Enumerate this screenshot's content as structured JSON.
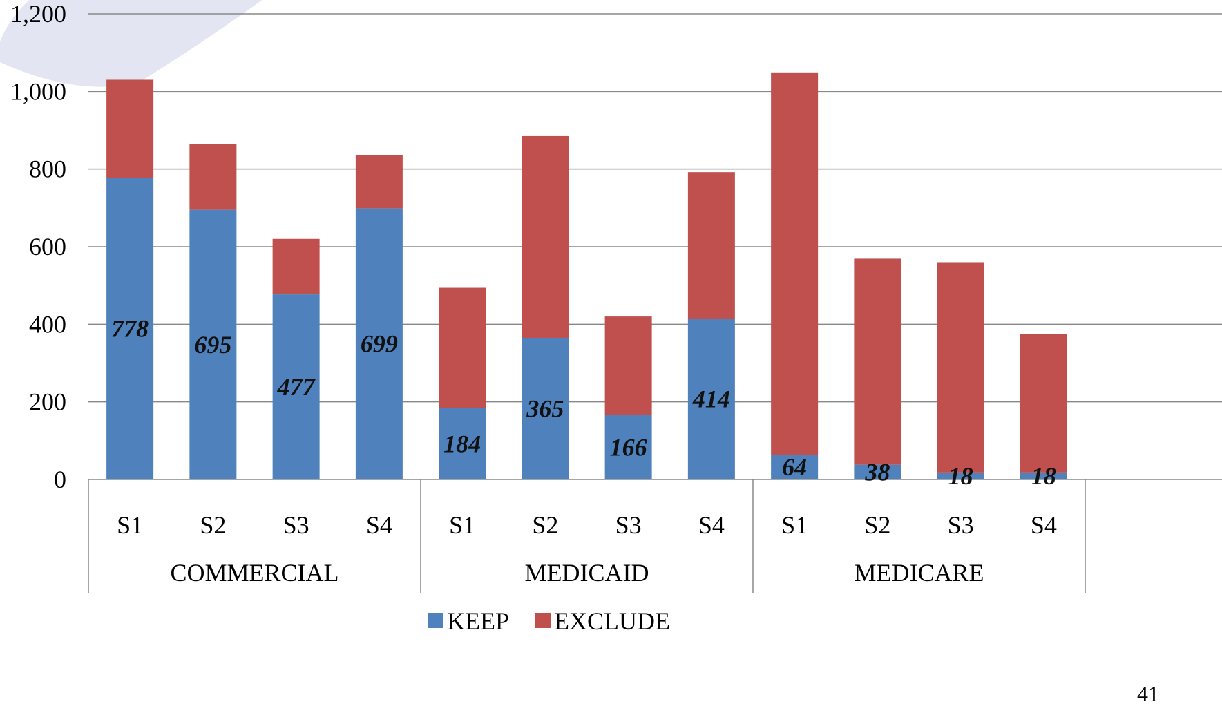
{
  "page_number": "41",
  "chart_data": {
    "type": "bar",
    "stacked": true,
    "groups": [
      "COMMERCIAL",
      "MEDICAID",
      "MEDICARE"
    ],
    "categories": [
      "S1",
      "S2",
      "S3",
      "S4"
    ],
    "series": [
      {
        "name": "KEEP",
        "color": "#4F81BD",
        "values": [
          [
            778,
            695,
            477,
            699
          ],
          [
            184,
            365,
            166,
            414
          ],
          [
            64,
            38,
            18,
            18
          ]
        ]
      },
      {
        "name": "EXCLUDE",
        "color": "#C0504D",
        "values": [
          [
            252,
            170,
            143,
            137
          ],
          [
            310,
            520,
            254,
            378
          ],
          [
            985,
            531,
            542,
            357
          ]
        ]
      }
    ],
    "data_labels": [
      [
        "778",
        "695",
        "477",
        "699"
      ],
      [
        "184",
        "365",
        "166",
        "414"
      ],
      [
        "64",
        "38",
        "18",
        "18"
      ]
    ],
    "y_ticks": [
      "0",
      "200",
      "400",
      "600",
      "800",
      "1,000",
      "1,200"
    ],
    "ylim": [
      0,
      1200
    ],
    "grid": true,
    "legend_position": "bottom"
  }
}
